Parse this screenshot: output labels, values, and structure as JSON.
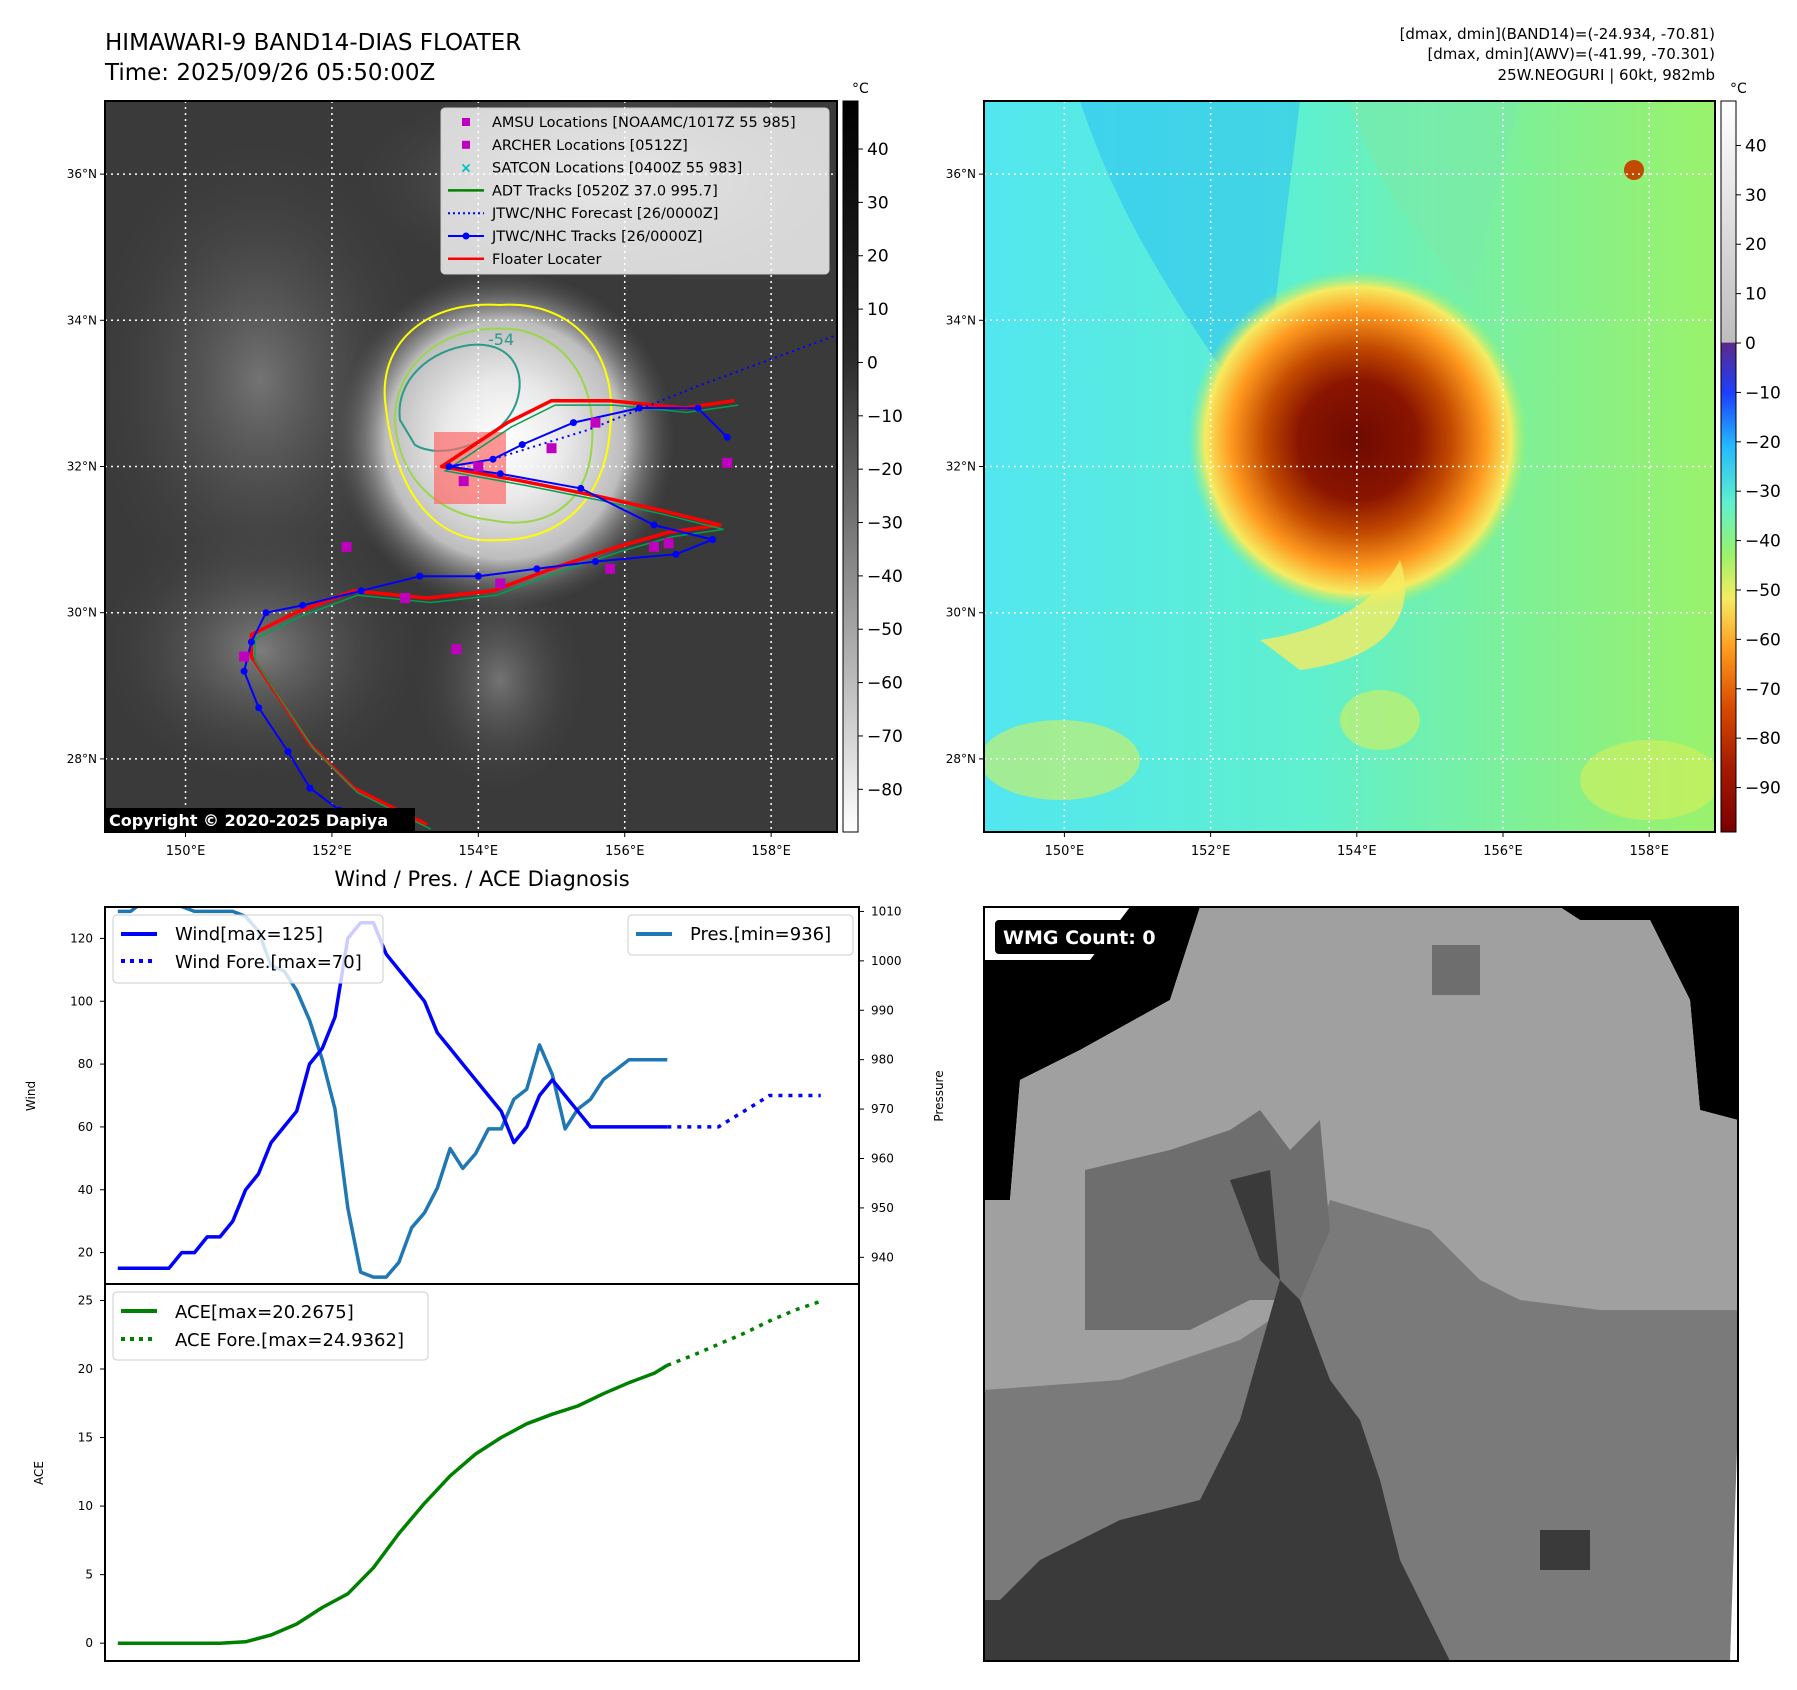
{
  "header": {
    "title_line1": "HIMAWARI-9 BAND14-DIAS FLOATER",
    "title_line2": "Time: 2025/09/26 05:50:00Z",
    "info_line1": "[dmax, dmin](BAND14)=(-24.934, -70.81)",
    "info_line2": "[dmax, dmin](AWV)=(-41.99, -70.301)",
    "info_line3": "25W.NEOGURI | 60kt, 982mb"
  },
  "map_axes": {
    "lon_labels": [
      "150°E",
      "152°E",
      "154°E",
      "156°E",
      "158°E"
    ],
    "lon_values": [
      150,
      152,
      154,
      156,
      158
    ],
    "lat_labels": [
      "36°N",
      "34°N",
      "32°N",
      "30°N",
      "28°N"
    ],
    "lat_values": [
      36,
      34,
      32,
      30,
      28
    ],
    "lon_range": [
      148.9,
      158.9
    ],
    "lat_range": [
      27.0,
      37.0
    ]
  },
  "ir_panel": {
    "copyright": "Copyright © 2020-2025 Dapiya",
    "contour_label": "-54",
    "legend": [
      {
        "label": "AMSU Locations [NOAAMC/1017Z 55 985]",
        "marker": "square",
        "color": "#bf00bf"
      },
      {
        "label": "ARCHER Locations [0512Z]",
        "marker": "square",
        "color": "#bf00bf"
      },
      {
        "label": "SATCON Locations [0400Z 55 983]",
        "marker": "x",
        "color": "#00bfbf"
      },
      {
        "label": "ADT Tracks [0520Z 37.0 995.7]",
        "marker": "line",
        "color": "#008000"
      },
      {
        "label": "JTWC/NHC Forecast [26/0000Z]",
        "marker": "dotted",
        "color": "#0000ff"
      },
      {
        "label": "JTWC/NHC Tracks [26/0000Z]",
        "marker": "line-dot",
        "color": "#0000ff"
      },
      {
        "label": "Floater Locater",
        "marker": "line",
        "color": "#ff0000"
      }
    ],
    "jtwc_track": [
      [
        157.4,
        32.4
      ],
      [
        157.0,
        32.8
      ],
      [
        156.2,
        32.8
      ],
      [
        155.3,
        32.6
      ],
      [
        154.6,
        32.3
      ],
      [
        154.2,
        32.1
      ],
      [
        153.6,
        32.0
      ],
      [
        154.3,
        31.9
      ],
      [
        155.4,
        31.7
      ],
      [
        156.4,
        31.2
      ],
      [
        157.2,
        31.0
      ],
      [
        156.7,
        30.8
      ],
      [
        155.6,
        30.7
      ],
      [
        154.8,
        30.6
      ],
      [
        154.0,
        30.5
      ],
      [
        153.2,
        30.5
      ],
      [
        152.4,
        30.3
      ],
      [
        151.6,
        30.1
      ],
      [
        151.1,
        30.0
      ],
      [
        150.9,
        29.6
      ],
      [
        150.8,
        29.2
      ],
      [
        151.0,
        28.7
      ],
      [
        151.4,
        28.1
      ],
      [
        151.7,
        27.6
      ],
      [
        152.1,
        27.3
      ],
      [
        152.6,
        27.1
      ]
    ],
    "jtwc_forecast": [
      [
        154.2,
        32.1
      ],
      [
        155.5,
        32.5
      ],
      [
        157.0,
        33.1
      ],
      [
        158.9,
        33.8
      ]
    ],
    "red_track": [
      [
        157.5,
        32.9
      ],
      [
        156.8,
        32.8
      ],
      [
        155.8,
        32.9
      ],
      [
        155.0,
        32.9
      ],
      [
        154.4,
        32.6
      ],
      [
        153.5,
        32.0
      ],
      [
        154.6,
        31.8
      ],
      [
        155.6,
        31.6
      ],
      [
        156.5,
        31.4
      ],
      [
        157.3,
        31.2
      ],
      [
        156.6,
        31.1
      ],
      [
        155.9,
        30.9
      ],
      [
        155.0,
        30.6
      ],
      [
        154.2,
        30.3
      ],
      [
        153.3,
        30.2
      ],
      [
        152.3,
        30.3
      ],
      [
        151.5,
        30.0
      ],
      [
        150.9,
        29.7
      ],
      [
        150.9,
        29.4
      ],
      [
        151.3,
        28.8
      ],
      [
        151.7,
        28.2
      ],
      [
        152.3,
        27.6
      ],
      [
        152.9,
        27.3
      ],
      [
        153.3,
        27.1
      ]
    ],
    "amsu_points": [
      [
        155.6,
        32.6
      ],
      [
        155.0,
        32.25
      ],
      [
        154.0,
        32.0
      ],
      [
        153.8,
        31.8
      ],
      [
        154.3,
        30.4
      ],
      [
        152.2,
        30.9
      ],
      [
        153.0,
        30.2
      ],
      [
        153.7,
        29.5
      ],
      [
        156.4,
        30.9
      ],
      [
        156.6,
        30.95
      ],
      [
        155.8,
        30.6
      ],
      [
        150.8,
        29.4
      ],
      [
        157.4,
        32.05
      ]
    ],
    "colorbar": {
      "unit": "°C",
      "ticks": [
        40,
        30,
        20,
        10,
        0,
        -10,
        -20,
        -30,
        -40,
        -50,
        -60,
        -70,
        -80
      ],
      "range": [
        -88,
        49
      ]
    }
  },
  "wv_panel": {
    "colorbar": {
      "unit": "°C",
      "ticks": [
        40,
        30,
        20,
        10,
        0,
        -10,
        -20,
        -30,
        -40,
        -50,
        -60,
        -70,
        -80,
        -90
      ],
      "range": [
        -99,
        49
      ]
    }
  },
  "diagnosis": {
    "title": "Wind / Pres. / ACE Diagnosis",
    "wind_ylabel": "Wind",
    "pres_ylabel": "Pressure",
    "ace_ylabel": "ACE",
    "wind_legend": [
      "Wind[max=125]",
      "Wind Fore.[max=70]"
    ],
    "pres_legend": [
      "Pres.[min=936]"
    ],
    "ace_legend": [
      "ACE[max=20.2675]",
      "ACE Fore.[max=24.9362]"
    ]
  },
  "wmg_panel": {
    "label": "WMG Count: 0"
  },
  "chart_data": [
    {
      "type": "line",
      "name": "wind",
      "x_range": [
        -1,
        58
      ],
      "ylim": [
        10,
        130
      ],
      "yticks": [
        20,
        40,
        60,
        80,
        100,
        120
      ],
      "series": [
        {
          "name": "Wind[max=125]",
          "color": "#0000ff",
          "style": "solid",
          "x": [
            0,
            1,
            2,
            3,
            4,
            5,
            6,
            7,
            8,
            9,
            10,
            11,
            12,
            13,
            14,
            15,
            16,
            17,
            18,
            19,
            20,
            21,
            22,
            23,
            24,
            25,
            26,
            27,
            28,
            29,
            30,
            31,
            32,
            33,
            34,
            35,
            36,
            37,
            38,
            39,
            40,
            41,
            42,
            43
          ],
          "values": [
            15,
            15,
            15,
            15,
            15,
            20,
            20,
            25,
            25,
            30,
            40,
            45,
            55,
            60,
            65,
            80,
            85,
            95,
            120,
            125,
            125,
            115,
            110,
            105,
            100,
            90,
            85,
            80,
            75,
            70,
            65,
            55,
            60,
            70,
            75,
            70,
            65,
            60,
            60,
            60,
            60,
            60,
            60,
            60
          ]
        },
        {
          "name": "Wind Fore.[max=70]",
          "color": "#0000ff",
          "style": "dotted",
          "x": [
            43,
            45,
            47,
            49,
            51,
            53,
            55
          ],
          "values": [
            60,
            60,
            60,
            65,
            70,
            70,
            70
          ]
        }
      ]
    },
    {
      "type": "line",
      "name": "pressure",
      "x_range": [
        -1,
        58
      ],
      "ylim": [
        934.6,
        1010.9
      ],
      "yticks": [
        940,
        950,
        960,
        970,
        980,
        990,
        1000,
        1010
      ],
      "series": [
        {
          "name": "Pres.[min=936]",
          "color": "#1f77b4",
          "style": "solid",
          "x": [
            0,
            1,
            2,
            3,
            4,
            5,
            6,
            7,
            8,
            9,
            10,
            11,
            12,
            13,
            14,
            15,
            16,
            17,
            18,
            19,
            20,
            21,
            22,
            23,
            24,
            25,
            26,
            27,
            28,
            29,
            30,
            31,
            32,
            33,
            34,
            35,
            36,
            37,
            38,
            39,
            40,
            41,
            42,
            43
          ],
          "values": [
            1010,
            1010,
            1012,
            1012,
            1012,
            1011,
            1010,
            1010,
            1010,
            1010,
            1009,
            1006,
            999,
            998,
            994,
            988,
            980,
            970,
            950,
            937,
            936,
            936,
            939,
            946,
            949,
            954,
            962,
            958,
            961,
            966,
            966,
            972,
            974,
            983,
            977,
            966,
            970,
            972,
            976,
            978,
            980,
            980,
            980,
            980
          ]
        }
      ]
    },
    {
      "type": "line",
      "name": "ace",
      "x_range": [
        -1,
        58
      ],
      "ylim": [
        -1.3,
        26.2
      ],
      "yticks": [
        0,
        5,
        10,
        15,
        20,
        25
      ],
      "series": [
        {
          "name": "ACE[max=20.2675]",
          "color": "#008000",
          "style": "solid",
          "x": [
            0,
            2,
            4,
            6,
            8,
            10,
            12,
            14,
            16,
            18,
            20,
            22,
            24,
            26,
            28,
            30,
            32,
            34,
            36,
            38,
            40,
            42,
            43
          ],
          "values": [
            0,
            0,
            0,
            0,
            0,
            0.1,
            0.6,
            1.4,
            2.6,
            3.6,
            5.5,
            8.0,
            10.2,
            12.2,
            13.8,
            15.0,
            16.0,
            16.7,
            17.3,
            18.2,
            19.0,
            19.7,
            20.27
          ]
        },
        {
          "name": "ACE Fore.[max=24.9362]",
          "color": "#008000",
          "style": "dotted",
          "x": [
            43,
            45,
            47,
            49,
            51,
            53,
            55
          ],
          "values": [
            20.27,
            21.0,
            21.8,
            22.6,
            23.5,
            24.3,
            24.94
          ]
        }
      ]
    }
  ]
}
